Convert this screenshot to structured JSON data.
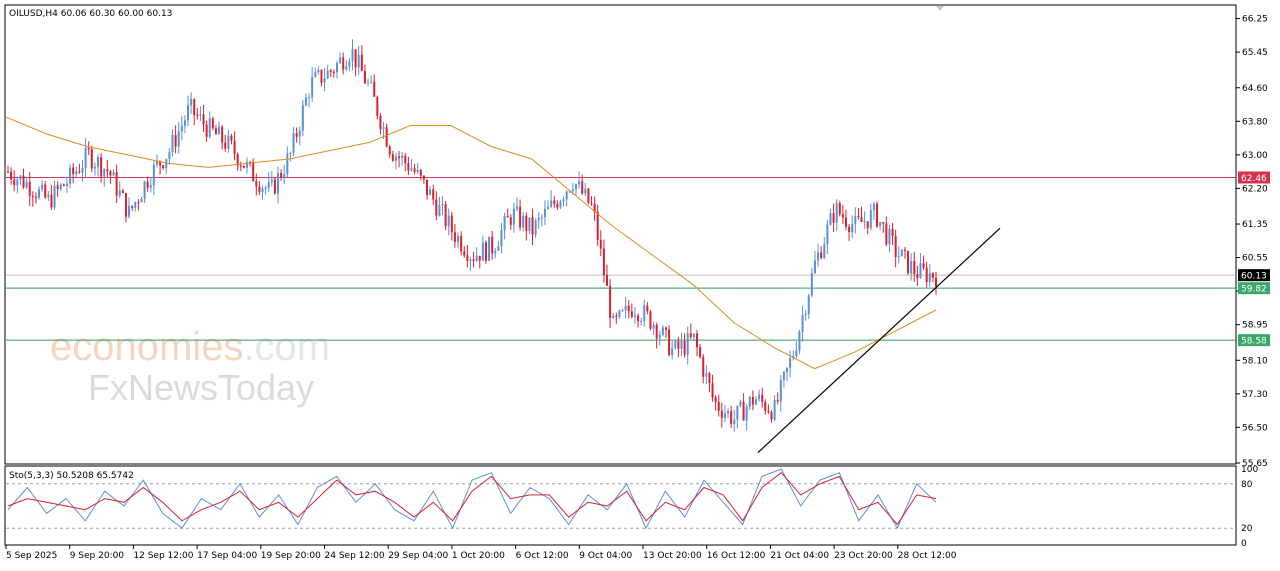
{
  "symbol_header": "OILUSD,H4  60.06 60.30 60.00 60.13",
  "stoch_header": "Sto(5,3,3) 50.5208 65.5742",
  "watermark": {
    "brand_main": "economies",
    "brand_suffix": ".com",
    "brand2": "FxNewsToday"
  },
  "colors": {
    "bull": "#5b8fd9",
    "bear": "#d9202e",
    "ma": "#e08a1e",
    "resistance": "#c23b5a",
    "support": "#2e9e5b",
    "trendline": "#000000",
    "stoch_main": "#5b8fd9",
    "stoch_signal": "#d9202e"
  },
  "chart_data": {
    "type": "candlestick",
    "ylim": [
      55.65,
      66.55
    ],
    "y_ticks": [
      "66.25",
      "65.45",
      "64.60",
      "63.80",
      "63.00",
      "62.20",
      "61.35",
      "60.55",
      "59.75",
      "58.95",
      "58.10",
      "57.30",
      "56.50",
      "55.65"
    ],
    "x_labels": [
      "5 Sep 2025",
      "9 Sep 20:00",
      "12 Sep 12:00",
      "17 Sep 04:00",
      "19 Sep 20:00",
      "24 Sep 12:00",
      "29 Sep 04:00",
      "1 Oct 20:00",
      "6 Oct 12:00",
      "9 Oct 04:00",
      "13 Oct 20:00",
      "16 Oct 12:00",
      "21 Oct 04:00",
      "23 Oct 20:00",
      "28 Oct 12:00"
    ],
    "price_close": [
      62.6,
      62.3,
      61.9,
      62.4,
      63.0,
      62.6,
      61.6,
      62.5,
      63.1,
      64.1,
      63.6,
      63.2,
      62.6,
      62.1,
      63.0,
      64.7,
      65.0,
      65.5,
      64.5,
      63.1,
      62.7,
      62.0,
      61.2,
      60.6,
      60.8,
      61.6,
      61.2,
      61.8,
      62.4,
      61.7,
      58.9,
      59.4,
      59.0,
      58.3,
      58.6,
      57.1,
      56.7,
      57.2,
      56.9,
      58.4,
      60.4,
      61.7,
      61.3,
      61.6,
      60.7,
      60.2,
      60.13
    ],
    "ma_curve": [
      63.9,
      63.5,
      63.2,
      63.0,
      62.8,
      62.7,
      62.8,
      62.9,
      63.1,
      63.3,
      63.7,
      63.7,
      63.2,
      62.9,
      62.1,
      61.3,
      60.6,
      59.9,
      59.0,
      58.4,
      57.9,
      58.3,
      58.8,
      59.3
    ],
    "levels": [
      {
        "label": "62.46",
        "value": 62.46,
        "kind": "resistance"
      },
      {
        "label": "60.13",
        "value": 60.13,
        "kind": "current"
      },
      {
        "label": "59.82",
        "value": 59.82,
        "kind": "support"
      },
      {
        "label": "58.58",
        "value": 58.58,
        "kind": "support"
      }
    ],
    "trendline": {
      "from_value": 55.9,
      "to_value": 61.25
    },
    "stoch": {
      "ylim": [
        0,
        100
      ],
      "ticks": [
        "100",
        "80",
        "20",
        "0"
      ],
      "main": [
        45,
        75,
        40,
        60,
        30,
        70,
        50,
        85,
        40,
        20,
        60,
        45,
        80,
        35,
        65,
        25,
        75,
        90,
        55,
        80,
        45,
        30,
        70,
        20,
        85,
        95,
        40,
        75,
        60,
        25,
        65,
        45,
        80,
        20,
        70,
        35,
        85,
        55,
        25,
        90,
        100,
        50,
        85,
        95,
        30,
        65,
        20,
        80,
        55
      ],
      "signal": [
        50,
        60,
        55,
        50,
        45,
        60,
        55,
        75,
        55,
        30,
        45,
        55,
        70,
        45,
        55,
        35,
        60,
        85,
        65,
        70,
        55,
        35,
        55,
        30,
        70,
        90,
        60,
        65,
        65,
        35,
        55,
        50,
        70,
        30,
        55,
        45,
        75,
        65,
        30,
        75,
        95,
        65,
        80,
        90,
        45,
        55,
        25,
        65,
        60
      ]
    }
  }
}
